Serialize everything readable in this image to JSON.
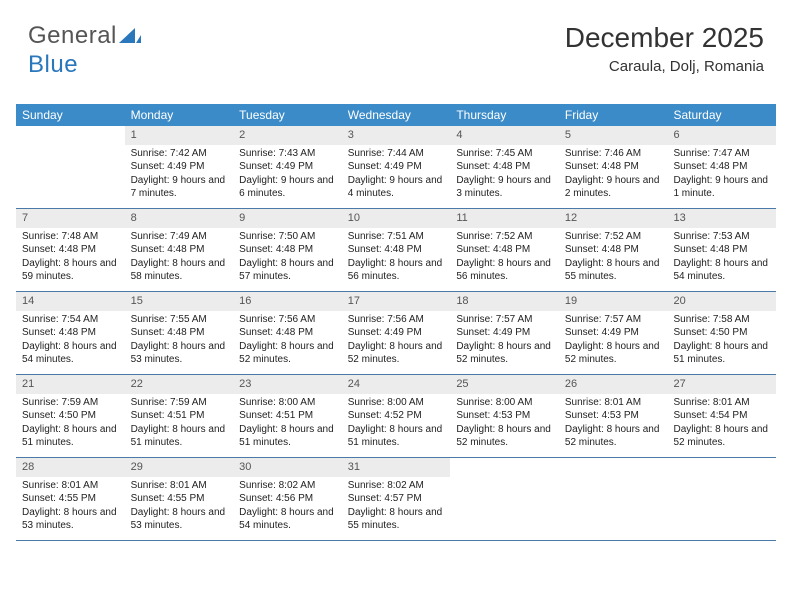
{
  "logo": {
    "part1": "General",
    "part2": "Blue"
  },
  "header": {
    "month_title": "December 2025",
    "location": "Caraula, Dolj, Romania"
  },
  "calendar": {
    "weekdays": [
      "Sunday",
      "Monday",
      "Tuesday",
      "Wednesday",
      "Thursday",
      "Friday",
      "Saturday"
    ],
    "header_bg": "#3b8bc8",
    "header_fg": "#ffffff",
    "daynum_bg": "#ececec",
    "rule_color": "#4a7aa8",
    "weeks": [
      [
        {
          "n": "",
          "sr": "",
          "ss": "",
          "dl": ""
        },
        {
          "n": "1",
          "sr": "Sunrise: 7:42 AM",
          "ss": "Sunset: 4:49 PM",
          "dl": "Daylight: 9 hours and 7 minutes."
        },
        {
          "n": "2",
          "sr": "Sunrise: 7:43 AM",
          "ss": "Sunset: 4:49 PM",
          "dl": "Daylight: 9 hours and 6 minutes."
        },
        {
          "n": "3",
          "sr": "Sunrise: 7:44 AM",
          "ss": "Sunset: 4:49 PM",
          "dl": "Daylight: 9 hours and 4 minutes."
        },
        {
          "n": "4",
          "sr": "Sunrise: 7:45 AM",
          "ss": "Sunset: 4:48 PM",
          "dl": "Daylight: 9 hours and 3 minutes."
        },
        {
          "n": "5",
          "sr": "Sunrise: 7:46 AM",
          "ss": "Sunset: 4:48 PM",
          "dl": "Daylight: 9 hours and 2 minutes."
        },
        {
          "n": "6",
          "sr": "Sunrise: 7:47 AM",
          "ss": "Sunset: 4:48 PM",
          "dl": "Daylight: 9 hours and 1 minute."
        }
      ],
      [
        {
          "n": "7",
          "sr": "Sunrise: 7:48 AM",
          "ss": "Sunset: 4:48 PM",
          "dl": "Daylight: 8 hours and 59 minutes."
        },
        {
          "n": "8",
          "sr": "Sunrise: 7:49 AM",
          "ss": "Sunset: 4:48 PM",
          "dl": "Daylight: 8 hours and 58 minutes."
        },
        {
          "n": "9",
          "sr": "Sunrise: 7:50 AM",
          "ss": "Sunset: 4:48 PM",
          "dl": "Daylight: 8 hours and 57 minutes."
        },
        {
          "n": "10",
          "sr": "Sunrise: 7:51 AM",
          "ss": "Sunset: 4:48 PM",
          "dl": "Daylight: 8 hours and 56 minutes."
        },
        {
          "n": "11",
          "sr": "Sunrise: 7:52 AM",
          "ss": "Sunset: 4:48 PM",
          "dl": "Daylight: 8 hours and 56 minutes."
        },
        {
          "n": "12",
          "sr": "Sunrise: 7:52 AM",
          "ss": "Sunset: 4:48 PM",
          "dl": "Daylight: 8 hours and 55 minutes."
        },
        {
          "n": "13",
          "sr": "Sunrise: 7:53 AM",
          "ss": "Sunset: 4:48 PM",
          "dl": "Daylight: 8 hours and 54 minutes."
        }
      ],
      [
        {
          "n": "14",
          "sr": "Sunrise: 7:54 AM",
          "ss": "Sunset: 4:48 PM",
          "dl": "Daylight: 8 hours and 54 minutes."
        },
        {
          "n": "15",
          "sr": "Sunrise: 7:55 AM",
          "ss": "Sunset: 4:48 PM",
          "dl": "Daylight: 8 hours and 53 minutes."
        },
        {
          "n": "16",
          "sr": "Sunrise: 7:56 AM",
          "ss": "Sunset: 4:48 PM",
          "dl": "Daylight: 8 hours and 52 minutes."
        },
        {
          "n": "17",
          "sr": "Sunrise: 7:56 AM",
          "ss": "Sunset: 4:49 PM",
          "dl": "Daylight: 8 hours and 52 minutes."
        },
        {
          "n": "18",
          "sr": "Sunrise: 7:57 AM",
          "ss": "Sunset: 4:49 PM",
          "dl": "Daylight: 8 hours and 52 minutes."
        },
        {
          "n": "19",
          "sr": "Sunrise: 7:57 AM",
          "ss": "Sunset: 4:49 PM",
          "dl": "Daylight: 8 hours and 52 minutes."
        },
        {
          "n": "20",
          "sr": "Sunrise: 7:58 AM",
          "ss": "Sunset: 4:50 PM",
          "dl": "Daylight: 8 hours and 51 minutes."
        }
      ],
      [
        {
          "n": "21",
          "sr": "Sunrise: 7:59 AM",
          "ss": "Sunset: 4:50 PM",
          "dl": "Daylight: 8 hours and 51 minutes."
        },
        {
          "n": "22",
          "sr": "Sunrise: 7:59 AM",
          "ss": "Sunset: 4:51 PM",
          "dl": "Daylight: 8 hours and 51 minutes."
        },
        {
          "n": "23",
          "sr": "Sunrise: 8:00 AM",
          "ss": "Sunset: 4:51 PM",
          "dl": "Daylight: 8 hours and 51 minutes."
        },
        {
          "n": "24",
          "sr": "Sunrise: 8:00 AM",
          "ss": "Sunset: 4:52 PM",
          "dl": "Daylight: 8 hours and 51 minutes."
        },
        {
          "n": "25",
          "sr": "Sunrise: 8:00 AM",
          "ss": "Sunset: 4:53 PM",
          "dl": "Daylight: 8 hours and 52 minutes."
        },
        {
          "n": "26",
          "sr": "Sunrise: 8:01 AM",
          "ss": "Sunset: 4:53 PM",
          "dl": "Daylight: 8 hours and 52 minutes."
        },
        {
          "n": "27",
          "sr": "Sunrise: 8:01 AM",
          "ss": "Sunset: 4:54 PM",
          "dl": "Daylight: 8 hours and 52 minutes."
        }
      ],
      [
        {
          "n": "28",
          "sr": "Sunrise: 8:01 AM",
          "ss": "Sunset: 4:55 PM",
          "dl": "Daylight: 8 hours and 53 minutes."
        },
        {
          "n": "29",
          "sr": "Sunrise: 8:01 AM",
          "ss": "Sunset: 4:55 PM",
          "dl": "Daylight: 8 hours and 53 minutes."
        },
        {
          "n": "30",
          "sr": "Sunrise: 8:02 AM",
          "ss": "Sunset: 4:56 PM",
          "dl": "Daylight: 8 hours and 54 minutes."
        },
        {
          "n": "31",
          "sr": "Sunrise: 8:02 AM",
          "ss": "Sunset: 4:57 PM",
          "dl": "Daylight: 8 hours and 55 minutes."
        },
        {
          "n": "",
          "sr": "",
          "ss": "",
          "dl": ""
        },
        {
          "n": "",
          "sr": "",
          "ss": "",
          "dl": ""
        },
        {
          "n": "",
          "sr": "",
          "ss": "",
          "dl": ""
        }
      ]
    ]
  }
}
